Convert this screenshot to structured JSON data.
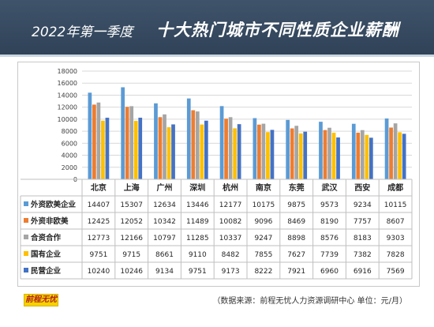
{
  "header": {
    "year_label": "2022年第一季度",
    "title": "十大热门城市不同性质企业薪酬"
  },
  "footer": {
    "logo_text": "前程无忧",
    "source": "（数据来源：前程无忧人力资源调研中心  单位：元/月）"
  },
  "chart_data": {
    "type": "bar",
    "categories": [
      "北京",
      "上海",
      "广州",
      "深圳",
      "杭州",
      "南京",
      "东莞",
      "武汉",
      "西安",
      "成都"
    ],
    "series": [
      {
        "name": "外资欧美企业",
        "color": "#5b9bd5",
        "values": [
          14407,
          15307,
          12634,
          13446,
          12177,
          10175,
          9875,
          9573,
          9234,
          10115
        ]
      },
      {
        "name": "外资非欧美",
        "color": "#ed7d31",
        "values": [
          12425,
          12052,
          10342,
          11489,
          10082,
          9096,
          8469,
          8190,
          7757,
          8607
        ]
      },
      {
        "name": "合资合作",
        "color": "#a5a5a5",
        "values": [
          12773,
          12166,
          10797,
          11285,
          10337,
          9247,
          8898,
          8576,
          8183,
          9303
        ]
      },
      {
        "name": "国有企业",
        "color": "#ffc000",
        "values": [
          9751,
          9715,
          8661,
          9110,
          8482,
          7855,
          7627,
          7739,
          7382,
          7828
        ]
      },
      {
        "name": "民营企业",
        "color": "#4472c4",
        "values": [
          10240,
          10246,
          9134,
          9751,
          9173,
          8222,
          7921,
          6960,
          6916,
          7569
        ]
      }
    ],
    "y_ticks": [
      "0",
      "2000",
      "4000",
      "6000",
      "8000",
      "10000",
      "12000",
      "14000",
      "16000",
      "18000"
    ],
    "ylim": [
      0,
      18000
    ],
    "grid": true,
    "legend": "data-table-below"
  }
}
